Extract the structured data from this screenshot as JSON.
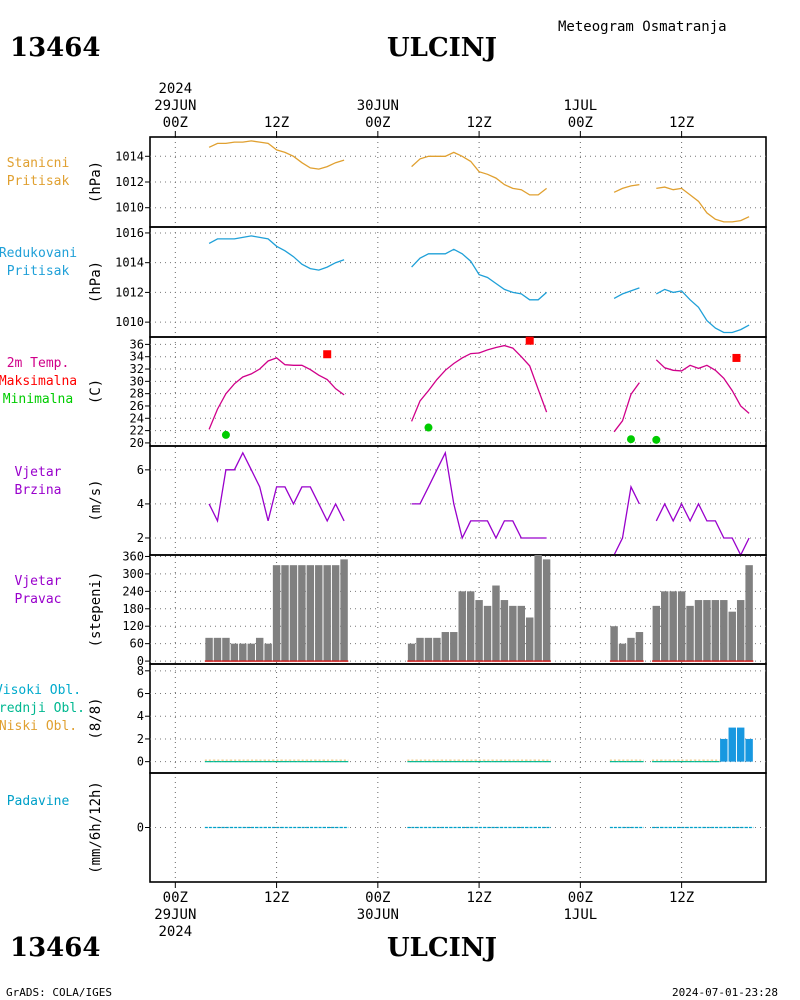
{
  "header": {
    "station_id": "13464",
    "station_name": "ULCINJ",
    "product": "Meteogram Osmatranja",
    "year": "2024",
    "footer_left": "GrADS: COLA/IGES",
    "footer_right": "2024-07-01-23:28"
  },
  "time_axis": {
    "ticks": [
      {
        "hour": 0,
        "label": "00Z",
        "date": "29JUN",
        "year": "2024"
      },
      {
        "hour": 12,
        "label": "12Z"
      },
      {
        "hour": 24,
        "label": "00Z",
        "date": "30JUN"
      },
      {
        "hour": 36,
        "label": "12Z"
      },
      {
        "hour": 48,
        "label": "00Z",
        "date": "1JUL"
      },
      {
        "hour": 60,
        "label": "12Z"
      }
    ],
    "range_hours": [
      -3,
      70
    ]
  },
  "colors": {
    "pressure": "#e0a030",
    "reduced": "#1fa0d8",
    "temp": "#d0008a",
    "max": "#ff0000",
    "min": "#00cc00",
    "wind": "#9900cc",
    "dir_bar": "#808080",
    "dir_base": "#d02020",
    "visoki": "#00aacc",
    "srednji": "#00b890",
    "niski": "#e0a030",
    "cloud_bar": "#1898e0",
    "precip": "#00a0c8"
  },
  "chart_data": [
    {
      "type": "line",
      "panel": "stanicni",
      "labels": [
        "Stanicni",
        "Pritisak"
      ],
      "ylabel": "(hPa)",
      "ylim": [
        1008.5,
        1015.5
      ],
      "yticks": [
        1010,
        1012,
        1014
      ],
      "series": [
        {
          "x": [
            4,
            5,
            6,
            7,
            8,
            9,
            10,
            11,
            12,
            13,
            14,
            15,
            16,
            17,
            18,
            19,
            20
          ],
          "y": [
            1014.7,
            1015.0,
            1015.0,
            1015.1,
            1015.1,
            1015.2,
            1015.1,
            1015.0,
            1014.5,
            1014.3,
            1014.0,
            1013.5,
            1013.1,
            1013.0,
            1013.2,
            1013.5,
            1013.7
          ]
        },
        {
          "x": [
            28,
            29,
            30,
            31,
            32,
            33,
            34,
            35,
            36,
            37,
            38,
            39,
            40,
            41,
            42,
            43,
            44
          ],
          "y": [
            1013.2,
            1013.8,
            1014.0,
            1014.0,
            1014.0,
            1014.3,
            1014.0,
            1013.6,
            1012.8,
            1012.6,
            1012.3,
            1011.8,
            1011.5,
            1011.4,
            1011.0,
            1011.0,
            1011.5
          ]
        },
        {
          "x": [
            52,
            53,
            54,
            55
          ],
          "y": [
            1011.2,
            1011.5,
            1011.7,
            1011.8
          ]
        },
        {
          "x": [
            57,
            58,
            59,
            60,
            61,
            62,
            63,
            64,
            65,
            66,
            67,
            68
          ],
          "y": [
            1011.5,
            1011.6,
            1011.4,
            1011.5,
            1011.0,
            1010.5,
            1009.6,
            1009.1,
            1008.9,
            1008.9,
            1009.0,
            1009.3
          ]
        }
      ]
    },
    {
      "type": "line",
      "panel": "redukovani",
      "labels": [
        "Redukovani",
        "Pritisak"
      ],
      "ylabel": "(hPa)",
      "ylim": [
        1009.0,
        1016.4
      ],
      "yticks": [
        1010,
        1012,
        1014,
        1016
      ],
      "series": [
        {
          "x": [
            4,
            5,
            6,
            7,
            8,
            9,
            10,
            11,
            12,
            13,
            14,
            15,
            16,
            17,
            18,
            19,
            20
          ],
          "y": [
            1015.3,
            1015.6,
            1015.6,
            1015.6,
            1015.7,
            1015.8,
            1015.7,
            1015.6,
            1015.1,
            1014.8,
            1014.4,
            1013.9,
            1013.6,
            1013.5,
            1013.7,
            1014.0,
            1014.2
          ]
        },
        {
          "x": [
            28,
            29,
            30,
            31,
            32,
            33,
            34,
            35,
            36,
            37,
            38,
            39,
            40,
            41,
            42,
            43,
            44
          ],
          "y": [
            1013.7,
            1014.3,
            1014.6,
            1014.6,
            1014.6,
            1014.9,
            1014.6,
            1014.1,
            1013.2,
            1013.0,
            1012.6,
            1012.2,
            1012.0,
            1011.9,
            1011.5,
            1011.5,
            1012.0
          ]
        },
        {
          "x": [
            52,
            53,
            54,
            55
          ],
          "y": [
            1011.6,
            1011.9,
            1012.1,
            1012.3
          ]
        },
        {
          "x": [
            57,
            58,
            59,
            60,
            61,
            62,
            63,
            64,
            65,
            66,
            67,
            68
          ],
          "y": [
            1011.9,
            1012.2,
            1012.0,
            1012.1,
            1011.5,
            1011.0,
            1010.1,
            1009.6,
            1009.3,
            1009.3,
            1009.5,
            1009.8
          ]
        }
      ]
    },
    {
      "type": "line",
      "panel": "temperatura",
      "labels": [
        "2m Temp.",
        "Maksimalna",
        "Minimalna"
      ],
      "ylabel": "(C)",
      "ylim": [
        19.5,
        37.2
      ],
      "yticks": [
        20,
        22,
        24,
        26,
        28,
        30,
        32,
        34,
        36
      ],
      "series": [
        {
          "x": [
            4,
            5,
            6,
            7,
            8,
            9,
            10,
            11,
            12,
            13,
            14,
            15,
            16,
            17,
            18,
            19,
            20
          ],
          "y": [
            22.2,
            25.5,
            28.0,
            29.6,
            30.7,
            31.2,
            32.0,
            33.3,
            33.8,
            32.7,
            32.6,
            32.6,
            31.9,
            31.0,
            30.3,
            28.8,
            27.8
          ]
        },
        {
          "x": [
            28,
            29,
            30,
            31,
            32,
            33,
            34,
            35,
            36,
            37,
            38,
            39,
            40,
            41,
            42,
            43,
            44
          ],
          "y": [
            23.5,
            26.8,
            28.5,
            30.3,
            31.8,
            32.9,
            33.8,
            34.5,
            34.6,
            35.1,
            35.5,
            35.8,
            35.4,
            34.0,
            32.5,
            28.7,
            25.0
          ]
        },
        {
          "x": [
            52,
            53,
            54,
            55
          ],
          "y": [
            21.8,
            23.6,
            27.9,
            29.8
          ]
        },
        {
          "x": [
            57,
            58,
            59,
            60,
            61,
            62,
            63,
            64,
            65,
            66,
            67,
            68
          ],
          "y": [
            33.5,
            32.2,
            31.8,
            31.7,
            32.6,
            32.1,
            32.6,
            31.8,
            30.5,
            28.5,
            26.0,
            24.8
          ]
        }
      ],
      "max_points": {
        "x": [
          18,
          42,
          66.5
        ],
        "y": [
          34.4,
          36.6,
          33.8
        ]
      },
      "min_points": {
        "x": [
          6,
          30,
          54,
          57
        ],
        "y": [
          21.3,
          22.5,
          20.6,
          20.5
        ]
      }
    },
    {
      "type": "line",
      "panel": "vjetar_brzina",
      "labels": [
        "Vjetar",
        "Brzina"
      ],
      "ylabel": "(m/s)",
      "ylim": [
        1.0,
        7.4
      ],
      "yticks": [
        2,
        4,
        6
      ],
      "series": [
        {
          "x": [
            4,
            5,
            6,
            7,
            8,
            9,
            10,
            11,
            12,
            13,
            14,
            15,
            16,
            17,
            18,
            19,
            20
          ],
          "y": [
            4,
            3,
            6,
            6,
            7,
            6,
            5,
            3,
            5,
            5,
            4,
            5,
            5,
            4,
            3,
            4,
            3
          ]
        },
        {
          "x": [
            28,
            29,
            30,
            31,
            32,
            33,
            34,
            35,
            36,
            37,
            38,
            39,
            40,
            41,
            42,
            43,
            44
          ],
          "y": [
            4,
            4,
            5,
            6,
            7,
            4,
            2,
            3,
            3,
            3,
            2,
            3,
            3,
            2,
            2,
            2,
            2
          ]
        },
        {
          "x": [
            52,
            53,
            54,
            55
          ],
          "y": [
            1,
            2,
            5,
            4
          ]
        },
        {
          "x": [
            57,
            58,
            59,
            60,
            61,
            62,
            63,
            64,
            65,
            66,
            67,
            68
          ],
          "y": [
            3,
            4,
            3,
            4,
            3,
            4,
            3,
            3,
            2,
            2,
            1,
            2
          ]
        }
      ]
    },
    {
      "type": "bar",
      "panel": "vjetar_pravac",
      "labels": [
        "Vjetar",
        "Pravac"
      ],
      "ylabel": "(stepeni)",
      "ylim": [
        -10,
        365
      ],
      "yticks": [
        0,
        60,
        120,
        180,
        240,
        300,
        360
      ],
      "x": [
        4,
        5,
        6,
        7,
        8,
        9,
        10,
        11,
        12,
        13,
        14,
        15,
        16,
        17,
        18,
        19,
        20,
        28,
        29,
        30,
        31,
        32,
        33,
        34,
        35,
        36,
        37,
        38,
        39,
        40,
        41,
        42,
        43,
        44,
        52,
        53,
        54,
        55,
        57,
        58,
        59,
        60,
        61,
        62,
        63,
        64,
        65,
        66,
        67,
        68
      ],
      "values": [
        80,
        80,
        80,
        60,
        60,
        60,
        80,
        60,
        330,
        330,
        330,
        330,
        330,
        330,
        330,
        330,
        350,
        60,
        80,
        80,
        80,
        100,
        100,
        240,
        240,
        210,
        190,
        260,
        210,
        190,
        190,
        150,
        370,
        350,
        120,
        60,
        80,
        100,
        190,
        240,
        240,
        240,
        190,
        210,
        210,
        210,
        210,
        170,
        210,
        330
      ]
    },
    {
      "type": "bar",
      "panel": "oblaci",
      "labels": [
        "Visoki Obl.",
        "Srednji Obl.",
        "Niski Obl."
      ],
      "ylabel": "(8/8)",
      "ylim": [
        -1,
        8.6
      ],
      "yticks": [
        0,
        2,
        4,
        6,
        8
      ],
      "x": [
        4,
        5,
        6,
        7,
        8,
        9,
        10,
        11,
        12,
        13,
        14,
        15,
        16,
        17,
        18,
        19,
        20,
        28,
        29,
        30,
        31,
        32,
        33,
        34,
        35,
        36,
        37,
        38,
        39,
        40,
        41,
        42,
        43,
        44,
        52,
        53,
        54,
        55,
        57,
        58,
        59,
        60,
        61,
        62,
        63,
        64,
        65,
        66,
        67,
        68
      ],
      "values": [
        0,
        0,
        0,
        0,
        0,
        0,
        0,
        0,
        0,
        0,
        0,
        0,
        0,
        0,
        0,
        0,
        0,
        0,
        0,
        0,
        0,
        0,
        0,
        0,
        0,
        0,
        0,
        0,
        0,
        0,
        0,
        0,
        0,
        0,
        0,
        0,
        0,
        0,
        0,
        0,
        0,
        0,
        0,
        0,
        0,
        0,
        2,
        3,
        3,
        2
      ]
    },
    {
      "type": "bar",
      "panel": "padavine",
      "labels": [
        "Padavine"
      ],
      "ylabel": "(mm/6h/12h)",
      "ylim": [
        -2,
        2
      ],
      "yticks": [
        0
      ],
      "x": [
        4,
        5,
        6,
        7,
        8,
        9,
        10,
        11,
        12,
        13,
        14,
        15,
        16,
        17,
        18,
        19,
        20,
        28,
        29,
        30,
        31,
        32,
        33,
        34,
        35,
        36,
        37,
        38,
        39,
        40,
        41,
        42,
        43,
        44,
        52,
        53,
        54,
        55,
        57,
        58,
        59,
        60,
        61,
        62,
        63,
        64,
        65,
        66,
        67,
        68
      ],
      "values": [
        0,
        0,
        0,
        0,
        0,
        0,
        0,
        0,
        0,
        0,
        0,
        0,
        0,
        0,
        0,
        0,
        0,
        0,
        0,
        0,
        0,
        0,
        0,
        0,
        0,
        0,
        0,
        0,
        0,
        0,
        0,
        0,
        0,
        0,
        0,
        0,
        0,
        0,
        0,
        0,
        0,
        0,
        0,
        0,
        0,
        0,
        0,
        0,
        0,
        0
      ]
    }
  ]
}
